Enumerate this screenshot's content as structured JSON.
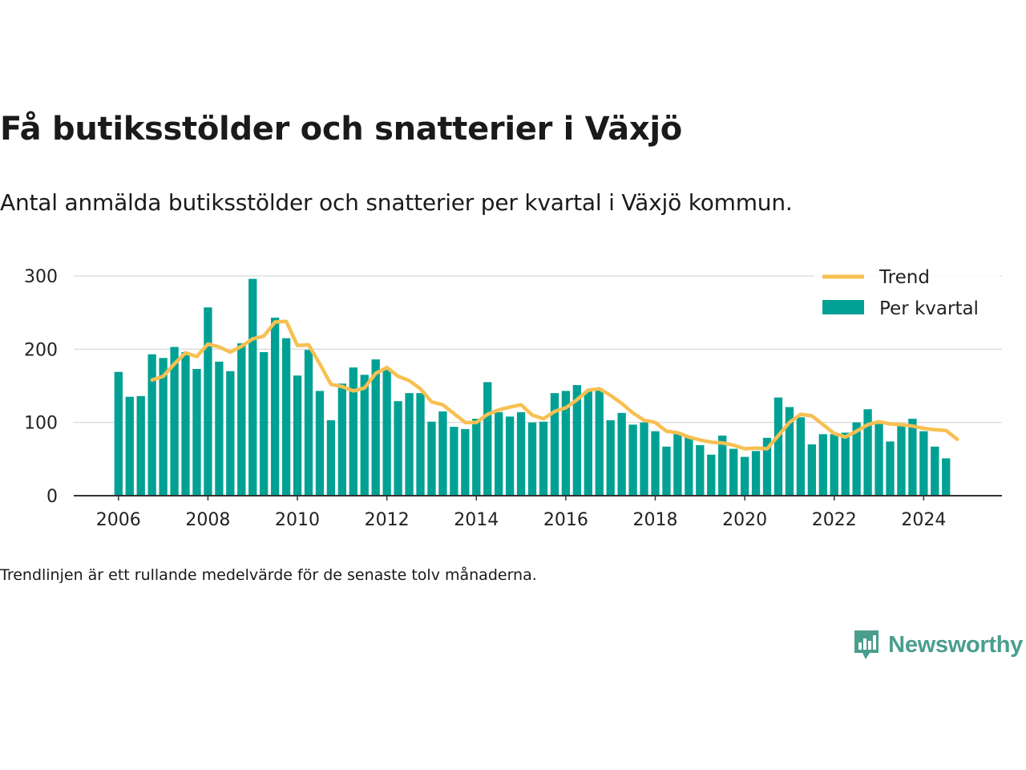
{
  "title": "Få butiksstölder och snatterier i Växjö",
  "subtitle": "Antal anmälda butiksstölder och snatterier per kvartal i Växjö kommun.",
  "note": "Trendlinjen är ett rullande medelvärde för de senaste tolv månaderna.",
  "brand": {
    "name": "Newsworthy",
    "icon": "newsworthy-logo-icon",
    "color": "#4a9e8d"
  },
  "colors": {
    "bars": "#00a194",
    "trend": "#f7c052",
    "grid": "#dddddd",
    "axis": "#333333",
    "text": "#222222"
  },
  "chart_data": {
    "type": "bar",
    "title": "Få butiksstölder och snatterier i Växjö",
    "x_start": 2006,
    "x_step": 0.25,
    "ylim": [
      0,
      300
    ],
    "yticks": [
      0,
      100,
      200,
      300
    ],
    "xticks": [
      2006,
      2008,
      2010,
      2012,
      2014,
      2016,
      2018,
      2020,
      2022,
      2024
    ],
    "xlim": [
      2005,
      2025.75
    ],
    "grid": true,
    "legend_position": "top-right",
    "series": [
      {
        "name": "Per kvartal",
        "type": "bar",
        "values": [
          169,
          135,
          136,
          193,
          188,
          203,
          196,
          173,
          257,
          183,
          170,
          208,
          296,
          196,
          243,
          215,
          164,
          199,
          143,
          103,
          153,
          175,
          165,
          186,
          173,
          129,
          140,
          140,
          101,
          115,
          94,
          91,
          105,
          155,
          114,
          108,
          114,
          100,
          101,
          140,
          143,
          151,
          143,
          146,
          103,
          113,
          97,
          100,
          88,
          67,
          84,
          81,
          69,
          56,
          82,
          64,
          53,
          61,
          79,
          134,
          121,
          107,
          70,
          84,
          84,
          86,
          100,
          118,
          98,
          74,
          96,
          105,
          88,
          67,
          51
        ]
      },
      {
        "name": "Trend",
        "type": "line",
        "start_index": 3,
        "values": [
          158,
          163,
          180,
          195,
          190,
          207,
          203,
          196,
          204,
          214,
          218,
          237,
          238,
          205,
          206,
          180,
          152,
          149,
          143,
          147,
          167,
          175,
          163,
          157,
          146,
          128,
          124,
          112,
          100,
          100,
          111,
          117,
          121,
          124,
          110,
          105,
          115,
          120,
          131,
          144,
          146,
          137,
          126,
          113,
          103,
          100,
          88,
          86,
          80,
          76,
          73,
          72,
          69,
          64,
          65,
          64,
          82,
          100,
          111,
          109,
          97,
          85,
          80,
          88,
          97,
          101,
          98,
          97,
          95,
          92,
          90,
          89,
          77
        ]
      }
    ]
  }
}
